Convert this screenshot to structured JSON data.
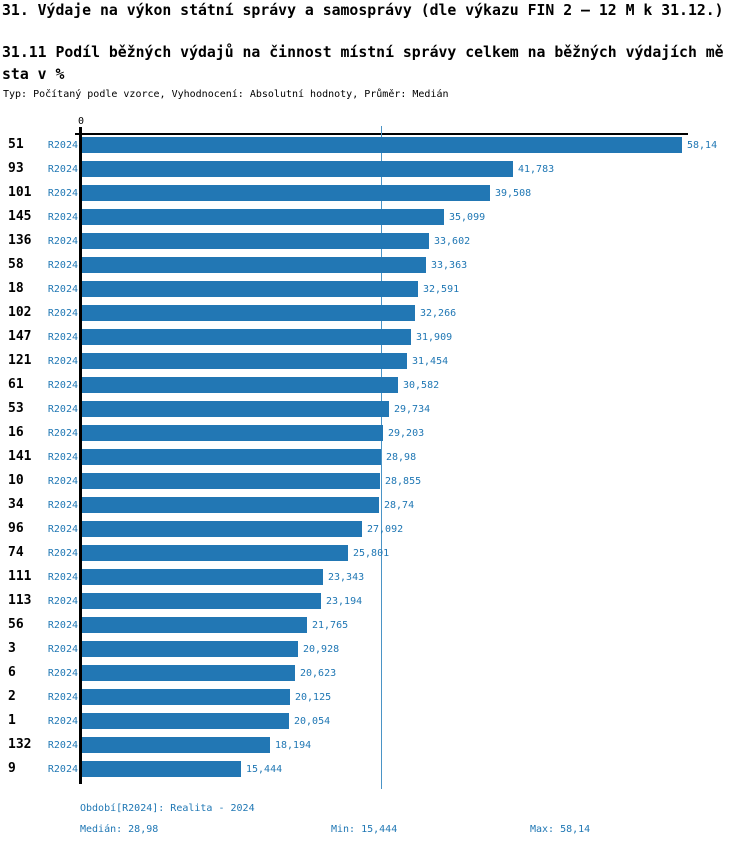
{
  "title": "31. Výdaje na výkon státní správy a samosprávy (dle výkazu FIN 2 – 12 M k 31.12.)",
  "subtitle_lines": {
    "line1": "31.11 Podíl běžných výdajů na činnost místní správy celkem na běžných výdajích mě",
    "line2": "sta v %"
  },
  "subtitle_full": "31.11 Podíl běžných výdajů na činnost místní správy celkem na běžných výdajích města v %",
  "meta_line": "Typ: Počítaný podle vzorce, Vyhodnocení: Absolutní hodnoty, Průměr: Medián",
  "axis": {
    "zero_label": "0"
  },
  "colors": {
    "bar": "#2277b4",
    "blue_text": "#1f77b4",
    "median_line": "#4a94c6",
    "axis": "#000000"
  },
  "chart_data": {
    "type": "bar",
    "orientation": "horizontal",
    "title": "31.11 Podíl běžných výdajů na činnost místní správy celkem na běžných výdajích města v %",
    "xlabel": "",
    "ylabel": "",
    "xlim": [
      0,
      58.14
    ],
    "grid": false,
    "legend_position": "none",
    "series_name": "R2024",
    "categories": [
      "51",
      "93",
      "101",
      "145",
      "136",
      "58",
      "18",
      "102",
      "147",
      "121",
      "61",
      "53",
      "16",
      "141",
      "10",
      "34",
      "96",
      "74",
      "111",
      "113",
      "56",
      "3",
      "6",
      "2",
      "1",
      "132",
      "9"
    ],
    "period_labels": [
      "R2024",
      "R2024",
      "R2024",
      "R2024",
      "R2024",
      "R2024",
      "R2024",
      "R2024",
      "R2024",
      "R2024",
      "R2024",
      "R2024",
      "R2024",
      "R2024",
      "R2024",
      "R2024",
      "R2024",
      "R2024",
      "R2024",
      "R2024",
      "R2024",
      "R2024",
      "R2024",
      "R2024",
      "R2024",
      "R2024",
      "R2024"
    ],
    "values": [
      58.14,
      41.783,
      39.508,
      35.099,
      33.602,
      33.363,
      32.591,
      32.266,
      31.909,
      31.454,
      30.582,
      29.734,
      29.203,
      28.98,
      28.855,
      28.74,
      27.092,
      25.801,
      23.343,
      23.194,
      21.765,
      20.928,
      20.623,
      20.125,
      20.054,
      18.194,
      15.444
    ],
    "value_labels": [
      "58,14",
      "41,783",
      "39,508",
      "35,099",
      "33,602",
      "33,363",
      "32,591",
      "32,266",
      "31,909",
      "31,454",
      "30,582",
      "29,734",
      "29,203",
      "28,98",
      "28,855",
      "28,74",
      "27,092",
      "25,801",
      "23,343",
      "23,194",
      "21,765",
      "20,928",
      "20,623",
      "20,125",
      "20,054",
      "18,194",
      "15,444"
    ],
    "median": 28.98,
    "min": 15.444,
    "max": 58.14
  },
  "footer": {
    "period": "Období[R2024]: Realita - 2024",
    "median": "Medián: 28,98",
    "min": "Min: 15,444",
    "max": "Max: 58,14"
  }
}
